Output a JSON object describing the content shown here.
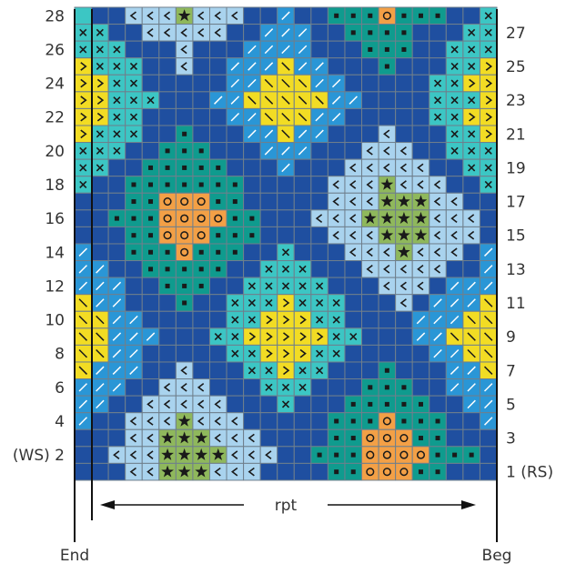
{
  "chart": {
    "columns": 25,
    "rows": 28,
    "colors": {
      "D": "#1f4fa0",
      "L": "#a9d3ee",
      "C": "#2a96d6",
      "T": "#0f9b8e",
      "G": "#8fb85c",
      "Y": "#f2dc24",
      "O": "#f3a046",
      "Q": "#3cc6c4",
      "grid": "#6f7f8c",
      "symbol": "#1a1a1a",
      "symbol_light": "#ffffff"
    },
    "symbols": {
      "D": "none",
      "L": "chevron-left",
      "C": "slash",
      "T": "small-square",
      "G": "star",
      "Y": "chevron-right",
      "O": "circle",
      "Q": "none",
      "t": "small-square",
      "x": "cross",
      "y": "backslash"
    },
    "grid": [
      "QDDLLLGLLLDDCDDTTTOTTTDDx",
      "xxDDLLLLLDDCCCDDTTTTDDDxx",
      "xxxDDDLDDDCCCCDDDTTTDDxxx",
      "YxxxDDLDDCCCyCCDDDTDDDxxY",
      "YYxxDDDDDCCyyyCCDDDDDxxYY",
      "YYxxxDDDCCyyyyyCCDDDDxxxY",
      "YYxxDDDDDCCyyyCCDDDDDxxYY",
      "YxxxDDTDDDCCyCCDDDLDDDxxY",
      "xxxDDTTTDDDCCCDDDLLLDDxxx",
      "xxDDTTTTTDDDCDDDLLLLLDDxx",
      "xDDTTTTTTTDDDDDLLLGLLLDDx",
      "DDDTTOOOTTDDDDDLLLGGGLLDD",
      "DDTTTOOOOTTDDDLLLGGGGLLLD",
      "DDDTTOOOTTTDDDDLLLGGGLLLD",
      "CDDTTTOTTTDDxDDDLLLGLLLDC",
      "CCDDTTTTTDDxxxDDDLLLLLDDC",
      "CCCDDTTTDDxxxxxDDDLLLDCCC",
      "yCCDDDTDDxxxYxxxDDDLDCCCy",
      "yyCCDDDDDxxYYYxxDDDDCCCyy",
      "yyCCCDDDxxYYYYYxxDDDCCyyy",
      "yyCCDDDDDxxYYYxxDDDDDCCyy",
      "yCCCDDLDDDxxYxxDDDTDDDCCy",
      "CCCDDLLLDDDxxxDDDTTTDDCCC",
      "CCDDLLLLLDDDxDDDTTTTTDDCC",
      "CDDLLLGLLLDDDDDTTTOTTTDDC",
      "DDDLLGGGLLLDDDDTTOOOTTDDD",
      "DDLLLGGGGLLLDDTTTOOOOTTTD",
      "DDDLLGGGLLLDDDDTTOOOTTDDD"
    ],
    "left_labels": [
      "28",
      "26",
      "24",
      "22",
      "20",
      "18",
      "16",
      "14",
      "12",
      "10",
      "8",
      "6",
      "4",
      "(WS) 2"
    ],
    "right_labels": [
      "27",
      "25",
      "23",
      "21",
      "19",
      "17",
      "15",
      "13",
      "11",
      "9",
      "7",
      "5",
      "3",
      "1 (RS)"
    ],
    "repeat_label": "rpt",
    "end_label": "End",
    "begin_label": "Beg"
  }
}
